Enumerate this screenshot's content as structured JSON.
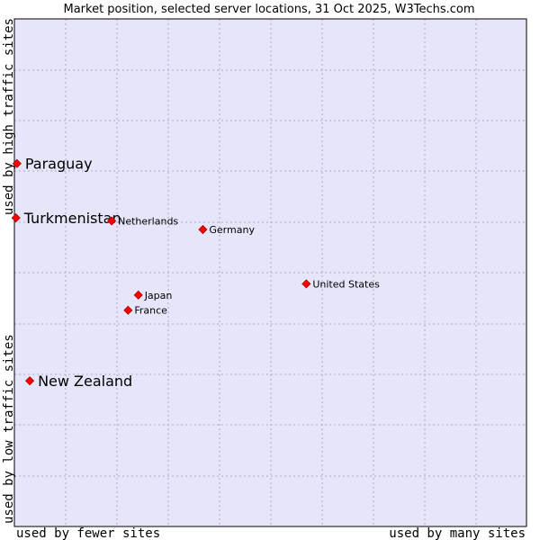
{
  "chart_data": {
    "type": "scatter",
    "title": "Market position, selected server locations, 31 Oct 2025, W3Techs.com",
    "xlabel_left": "used by fewer sites",
    "xlabel_right": "used by many sites",
    "ylabel_top": "used by high traffic sites",
    "ylabel_bottom": "used by low traffic sites",
    "xlim": [
      0,
      100
    ],
    "ylim": [
      0,
      100
    ],
    "grid": true,
    "colors": {
      "plot_bg": "#e6e6fa",
      "grid": "#aaaacc",
      "marker": "#ff0000",
      "marker_edge": "#aa0000",
      "frame": "#000000"
    },
    "points": [
      {
        "label": "Paraguay",
        "x": 0.5,
        "y": 71.5,
        "size": "large"
      },
      {
        "label": "Turkmenistan",
        "x": 0.3,
        "y": 60.8,
        "size": "large"
      },
      {
        "label": "New Zealand",
        "x": 3.0,
        "y": 28.7,
        "size": "large"
      },
      {
        "label": "Netherlands",
        "x": 19.0,
        "y": 60.2,
        "size": "small"
      },
      {
        "label": "Germany",
        "x": 36.8,
        "y": 58.5,
        "size": "small"
      },
      {
        "label": "United States",
        "x": 57.0,
        "y": 47.8,
        "size": "small"
      },
      {
        "label": "Japan",
        "x": 24.2,
        "y": 45.6,
        "size": "small"
      },
      {
        "label": "France",
        "x": 22.2,
        "y": 42.6,
        "size": "small"
      }
    ]
  }
}
